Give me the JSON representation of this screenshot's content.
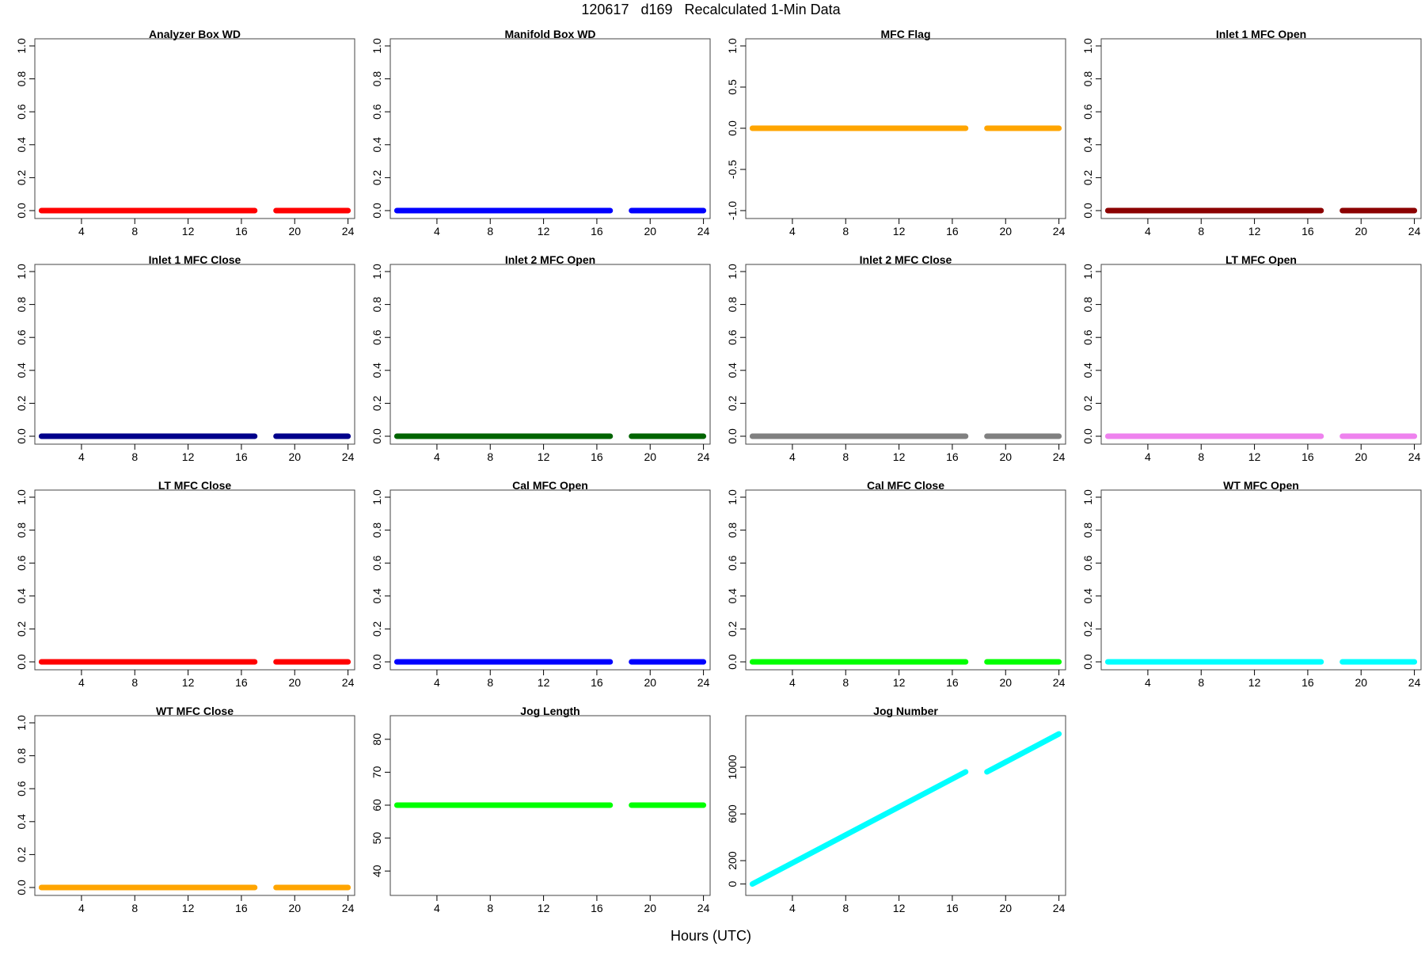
{
  "figure": {
    "title": "120617   d169   Recalculated 1-Min Data",
    "xlabel": "Hours (UTC)"
  },
  "chart_data": [
    {
      "type": "scatter",
      "title": "Analyzer Box WD",
      "color": "#FF0000",
      "xlim": [
        0.5,
        24.5
      ],
      "ylim": [
        0,
        1
      ],
      "xticks": [
        4,
        8,
        12,
        16,
        20,
        24
      ],
      "yticks": [
        "0.0",
        "0.2",
        "0.4",
        "0.6",
        "0.8",
        "1.0"
      ],
      "segments": [
        {
          "x": [
            1.0,
            17.0
          ],
          "y": [
            0,
            0
          ]
        },
        {
          "x": [
            18.6,
            24.0
          ],
          "y": [
            0,
            0
          ]
        }
      ]
    },
    {
      "type": "scatter",
      "title": "Manifold Box WD",
      "color": "#0000FF",
      "xlim": [
        0.5,
        24.5
      ],
      "ylim": [
        0,
        1
      ],
      "xticks": [
        4,
        8,
        12,
        16,
        20,
        24
      ],
      "yticks": [
        "0.0",
        "0.2",
        "0.4",
        "0.6",
        "0.8",
        "1.0"
      ],
      "segments": [
        {
          "x": [
            1.0,
            17.0
          ],
          "y": [
            0,
            0
          ]
        },
        {
          "x": [
            18.6,
            24.0
          ],
          "y": [
            0,
            0
          ]
        }
      ]
    },
    {
      "type": "scatter",
      "title": "MFC Flag",
      "color": "#FFA500",
      "xlim": [
        0.5,
        24.5
      ],
      "ylim": [
        -1,
        1
      ],
      "xticks": [
        4,
        8,
        12,
        16,
        20,
        24
      ],
      "yticks": [
        "-1.0",
        "-0.5",
        "0.0",
        "0.5",
        "1.0"
      ],
      "segments": [
        {
          "x": [
            1.0,
            17.0
          ],
          "y": [
            0,
            0
          ]
        },
        {
          "x": [
            18.6,
            24.0
          ],
          "y": [
            0,
            0
          ]
        }
      ]
    },
    {
      "type": "scatter",
      "title": "Inlet 1 MFC Open",
      "color": "#8B0000",
      "xlim": [
        0.5,
        24.5
      ],
      "ylim": [
        0,
        1
      ],
      "xticks": [
        4,
        8,
        12,
        16,
        20,
        24
      ],
      "yticks": [
        "0.0",
        "0.2",
        "0.4",
        "0.6",
        "0.8",
        "1.0"
      ],
      "segments": [
        {
          "x": [
            1.0,
            17.0
          ],
          "y": [
            0,
            0
          ]
        },
        {
          "x": [
            18.6,
            24.0
          ],
          "y": [
            0,
            0
          ]
        }
      ]
    },
    {
      "type": "scatter",
      "title": "Inlet 1 MFC Close",
      "color": "#00008B",
      "xlim": [
        0.5,
        24.5
      ],
      "ylim": [
        0,
        1
      ],
      "xticks": [
        4,
        8,
        12,
        16,
        20,
        24
      ],
      "yticks": [
        "0.0",
        "0.2",
        "0.4",
        "0.6",
        "0.8",
        "1.0"
      ],
      "segments": [
        {
          "x": [
            1.0,
            17.0
          ],
          "y": [
            0,
            0
          ]
        },
        {
          "x": [
            18.6,
            24.0
          ],
          "y": [
            0,
            0
          ]
        }
      ]
    },
    {
      "type": "scatter",
      "title": "Inlet 2 MFC Open",
      "color": "#006400",
      "xlim": [
        0.5,
        24.5
      ],
      "ylim": [
        0,
        1
      ],
      "xticks": [
        4,
        8,
        12,
        16,
        20,
        24
      ],
      "yticks": [
        "0.0",
        "0.2",
        "0.4",
        "0.6",
        "0.8",
        "1.0"
      ],
      "segments": [
        {
          "x": [
            1.0,
            17.0
          ],
          "y": [
            0,
            0
          ]
        },
        {
          "x": [
            18.6,
            24.0
          ],
          "y": [
            0,
            0
          ]
        }
      ]
    },
    {
      "type": "scatter",
      "title": "Inlet 2 MFC Close",
      "color": "#808080",
      "xlim": [
        0.5,
        24.5
      ],
      "ylim": [
        0,
        1
      ],
      "xticks": [
        4,
        8,
        12,
        16,
        20,
        24
      ],
      "yticks": [
        "0.0",
        "0.2",
        "0.4",
        "0.6",
        "0.8",
        "1.0"
      ],
      "segments": [
        {
          "x": [
            1.0,
            17.0
          ],
          "y": [
            0,
            0
          ]
        },
        {
          "x": [
            18.6,
            24.0
          ],
          "y": [
            0,
            0
          ]
        }
      ]
    },
    {
      "type": "scatter",
      "title": "LT MFC Open",
      "color": "#EE82EE",
      "xlim": [
        0.5,
        24.5
      ],
      "ylim": [
        0,
        1
      ],
      "xticks": [
        4,
        8,
        12,
        16,
        20,
        24
      ],
      "yticks": [
        "0.0",
        "0.2",
        "0.4",
        "0.6",
        "0.8",
        "1.0"
      ],
      "segments": [
        {
          "x": [
            1.0,
            17.0
          ],
          "y": [
            0,
            0
          ]
        },
        {
          "x": [
            18.6,
            24.0
          ],
          "y": [
            0,
            0
          ]
        }
      ]
    },
    {
      "type": "scatter",
      "title": "LT MFC Close",
      "color": "#FF0000",
      "xlim": [
        0.5,
        24.5
      ],
      "ylim": [
        0,
        1
      ],
      "xticks": [
        4,
        8,
        12,
        16,
        20,
        24
      ],
      "yticks": [
        "0.0",
        "0.2",
        "0.4",
        "0.6",
        "0.8",
        "1.0"
      ],
      "segments": [
        {
          "x": [
            1.0,
            17.0
          ],
          "y": [
            0,
            0
          ]
        },
        {
          "x": [
            18.6,
            24.0
          ],
          "y": [
            0,
            0
          ]
        }
      ]
    },
    {
      "type": "scatter",
      "title": "Cal MFC Open",
      "color": "#0000FF",
      "xlim": [
        0.5,
        24.5
      ],
      "ylim": [
        0,
        1
      ],
      "xticks": [
        4,
        8,
        12,
        16,
        20,
        24
      ],
      "yticks": [
        "0.0",
        "0.2",
        "0.4",
        "0.6",
        "0.8",
        "1.0"
      ],
      "segments": [
        {
          "x": [
            1.0,
            17.0
          ],
          "y": [
            0,
            0
          ]
        },
        {
          "x": [
            18.6,
            24.0
          ],
          "y": [
            0,
            0
          ]
        }
      ]
    },
    {
      "type": "scatter",
      "title": "Cal MFC Close",
      "color": "#00FF00",
      "xlim": [
        0.5,
        24.5
      ],
      "ylim": [
        0,
        1
      ],
      "xticks": [
        4,
        8,
        12,
        16,
        20,
        24
      ],
      "yticks": [
        "0.0",
        "0.2",
        "0.4",
        "0.6",
        "0.8",
        "1.0"
      ],
      "segments": [
        {
          "x": [
            1.0,
            17.0
          ],
          "y": [
            0,
            0
          ]
        },
        {
          "x": [
            18.6,
            24.0
          ],
          "y": [
            0,
            0
          ]
        }
      ]
    },
    {
      "type": "scatter",
      "title": "WT MFC Open",
      "color": "#00FFFF",
      "xlim": [
        0.5,
        24.5
      ],
      "ylim": [
        0,
        1
      ],
      "xticks": [
        4,
        8,
        12,
        16,
        20,
        24
      ],
      "yticks": [
        "0.0",
        "0.2",
        "0.4",
        "0.6",
        "0.8",
        "1.0"
      ],
      "segments": [
        {
          "x": [
            1.0,
            17.0
          ],
          "y": [
            0,
            0
          ]
        },
        {
          "x": [
            18.6,
            24.0
          ],
          "y": [
            0,
            0
          ]
        }
      ]
    },
    {
      "type": "scatter",
      "title": "WT MFC Close",
      "color": "#FFA500",
      "xlim": [
        0.5,
        24.5
      ],
      "ylim": [
        0,
        1
      ],
      "xticks": [
        4,
        8,
        12,
        16,
        20,
        24
      ],
      "yticks": [
        "0.0",
        "0.2",
        "0.4",
        "0.6",
        "0.8",
        "1.0"
      ],
      "segments": [
        {
          "x": [
            1.0,
            17.0
          ],
          "y": [
            0,
            0
          ]
        },
        {
          "x": [
            18.6,
            24.0
          ],
          "y": [
            0,
            0
          ]
        }
      ]
    },
    {
      "type": "scatter",
      "title": "Jog Length",
      "color": "#00FF00",
      "xlim": [
        0.5,
        24.5
      ],
      "ylim": [
        35,
        85
      ],
      "xticks": [
        4,
        8,
        12,
        16,
        20,
        24
      ],
      "yticks": [
        "40",
        "50",
        "60",
        "70",
        "80"
      ],
      "segments": [
        {
          "x": [
            1.0,
            17.0
          ],
          "y": [
            60,
            60
          ]
        },
        {
          "x": [
            18.6,
            24.0
          ],
          "y": [
            60,
            60
          ]
        }
      ]
    },
    {
      "type": "scatter",
      "title": "Jog Number",
      "color": "#00FFFF",
      "xlim": [
        0.5,
        24.5
      ],
      "ylim": [
        -30,
        1380
      ],
      "xticks": [
        4,
        8,
        12,
        16,
        20,
        24
      ],
      "yticks": [
        "0",
        "200",
        "600",
        "1000"
      ],
      "segments": [
        {
          "x": [
            1.0,
            17.0
          ],
          "y": [
            0,
            960
          ]
        },
        {
          "x": [
            18.6,
            24.0
          ],
          "y": [
            960,
            1285
          ]
        }
      ]
    }
  ]
}
